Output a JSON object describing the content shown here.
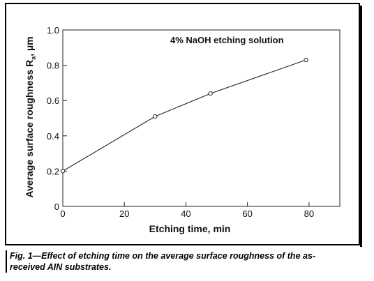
{
  "chart_data": {
    "type": "line",
    "title": "",
    "annotation": "4% NaOH etching solution",
    "xlabel": "Etching time, min",
    "ylabel": "Average surface roughness R",
    "ylabel_subscript": "a",
    "ylabel_unit": ", µm",
    "xlim": [
      0,
      90
    ],
    "ylim": [
      0,
      1.0
    ],
    "x_ticks": [
      0,
      20,
      40,
      60,
      80
    ],
    "x_tick_labels": [
      "0",
      "20",
      "40",
      "60",
      "80"
    ],
    "y_ticks": [
      0,
      0.2,
      0.4,
      0.6,
      0.8,
      1.0
    ],
    "y_tick_labels": [
      "0",
      "0.2",
      "0.4",
      "0.6",
      "0.8",
      "1.0"
    ],
    "grid": false,
    "series": [
      {
        "x": [
          0,
          30,
          48,
          79
        ],
        "y": [
          0.2,
          0.51,
          0.64,
          0.83
        ],
        "marker": "open-circle"
      }
    ]
  },
  "caption": {
    "line1": "Fig. 1—Effect of etching time on the average surface roughness of the as-",
    "line2": "received AIN substrates."
  }
}
